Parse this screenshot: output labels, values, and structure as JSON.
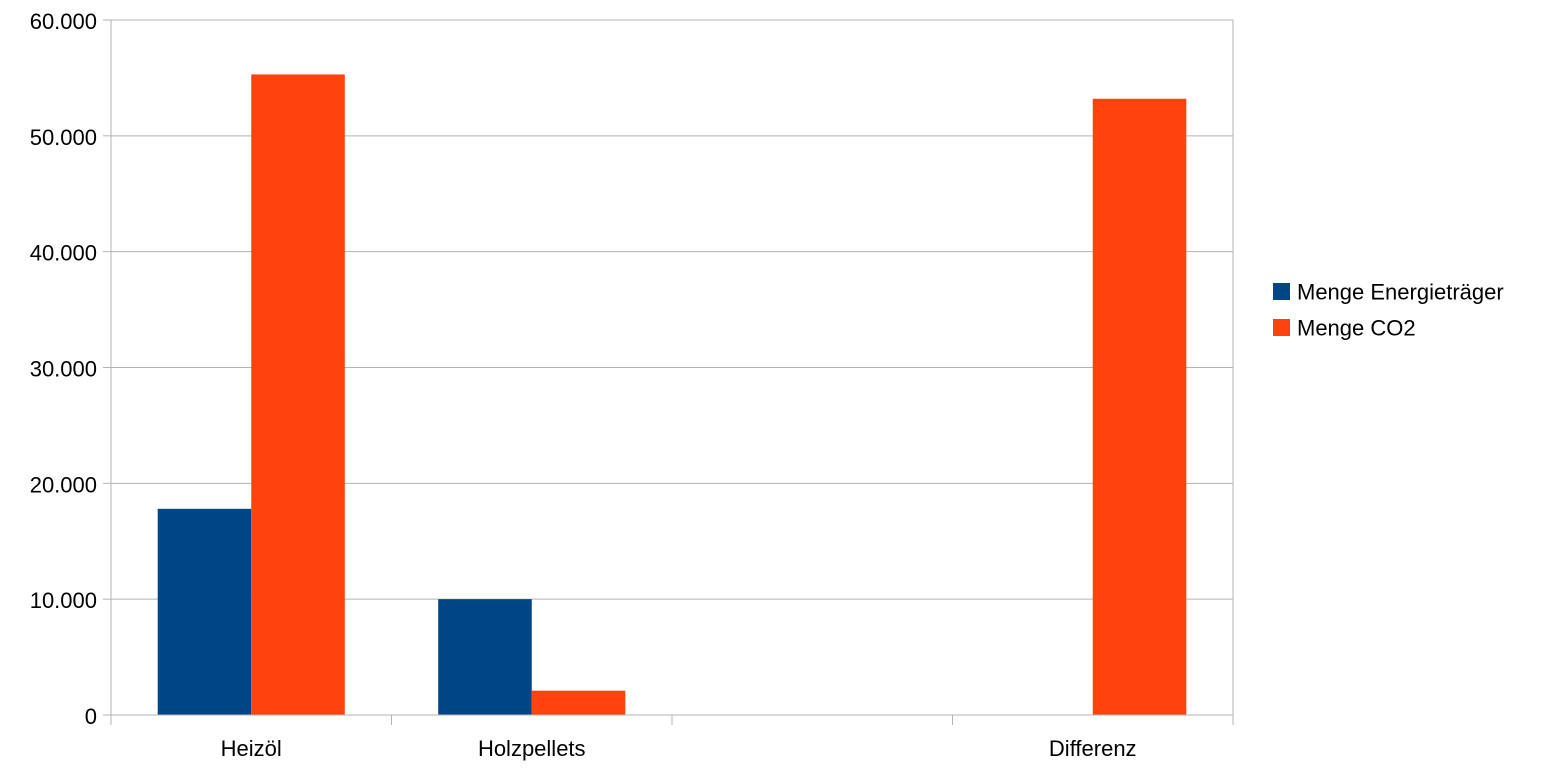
{
  "chart_data": {
    "type": "bar",
    "title": "",
    "xlabel": "",
    "ylabel": "",
    "categories": [
      "Heizöl",
      "Holzpellets",
      "",
      "Differenz"
    ],
    "series": [
      {
        "name": "Menge Energieträger",
        "color": "#004586",
        "values": [
          17800,
          10000,
          null,
          null
        ]
      },
      {
        "name": "Menge CO2",
        "color": "#ff420e",
        "values": [
          55300,
          2100,
          null,
          53200
        ]
      }
    ],
    "ylim": [
      0,
      60000
    ],
    "yticks": [
      0,
      10000,
      20000,
      30000,
      40000,
      50000,
      60000
    ],
    "ytick_labels": [
      "0",
      "10.000",
      "20.000",
      "30.000",
      "40.000",
      "50.000",
      "60.000"
    ],
    "grid": true,
    "legend_position": "right"
  }
}
